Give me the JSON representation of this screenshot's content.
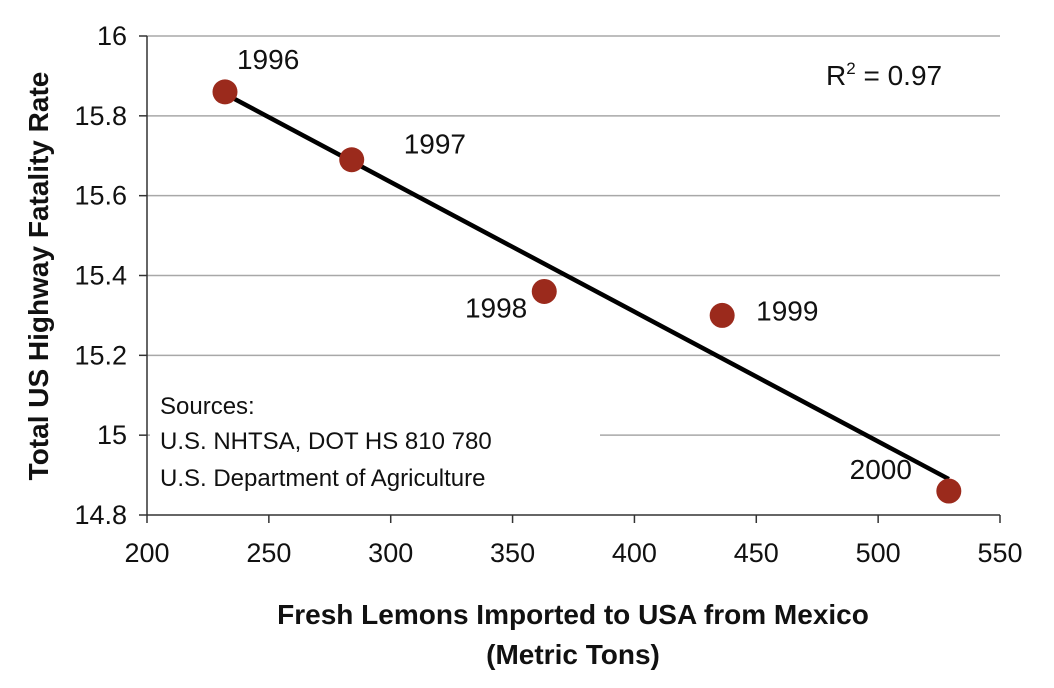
{
  "chart_data": {
    "type": "scatter",
    "title": "",
    "xlabel_lines": [
      "Fresh Lemons Imported to USA from Mexico",
      "(Metric Tons)"
    ],
    "ylabel": "Total US Highway Fatality Rate",
    "xlim": [
      200,
      550
    ],
    "ylim": [
      14.8,
      16
    ],
    "xticks": [
      200,
      250,
      300,
      350,
      400,
      450,
      500,
      550
    ],
    "yticks": [
      "14.8",
      "15",
      "15.2",
      "15.4",
      "15.6",
      "15.8",
      "16"
    ],
    "grid": "horizontal",
    "marker_color": "#9b2a1c",
    "points": [
      {
        "label": "1996",
        "x": 232,
        "y": 15.86
      },
      {
        "label": "1997",
        "x": 284,
        "y": 15.69
      },
      {
        "label": "1998",
        "x": 363,
        "y": 15.36
      },
      {
        "label": "1999",
        "x": 436,
        "y": 15.3
      },
      {
        "label": "2000",
        "x": 529,
        "y": 14.86
      }
    ],
    "trendline": {
      "x": [
        232,
        529
      ],
      "y": [
        15.855,
        14.89
      ]
    },
    "r_squared": {
      "prefix": "R",
      "exponent": "2",
      "value_text": " = 0.97"
    },
    "sources": [
      "Sources:",
      "U.S. NHTSA, DOT HS 810 780",
      "U.S. Department of Agriculture"
    ]
  }
}
